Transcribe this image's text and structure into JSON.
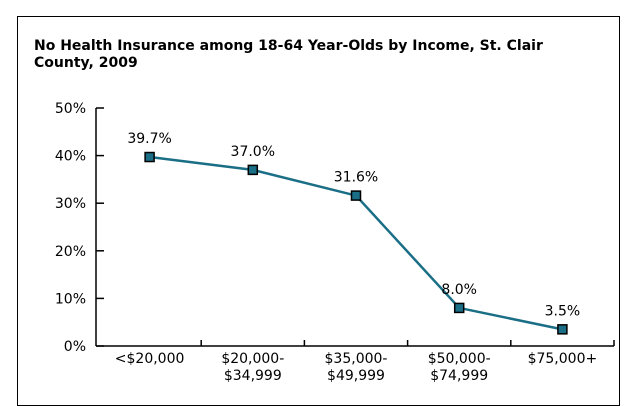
{
  "chart_data": {
    "type": "line",
    "title": "No Health Insurance among 18-64 Year-Olds by Income, St. Clair County, 2009",
    "xlabel": "",
    "ylabel": "",
    "categories": [
      [
        "<$20,000"
      ],
      [
        "$20,000-",
        "$34,999"
      ],
      [
        "$35,000-",
        "$49,999"
      ],
      [
        "$50,000-",
        "$74,999"
      ],
      [
        "$75,000+"
      ]
    ],
    "series": [
      {
        "values": [
          39.7,
          37.0,
          31.6,
          8.0,
          3.5
        ],
        "labels": [
          "39.7%",
          "37.0%",
          "31.6%",
          "8.0%",
          "3.5%"
        ],
        "color": "#1a6e86"
      }
    ],
    "ylim": [
      0,
      50
    ],
    "yticks": [
      0,
      10,
      20,
      30,
      40,
      50
    ],
    "ytick_labels": [
      "0%",
      "10%",
      "20%",
      "30%",
      "40%",
      "50%"
    ],
    "grid": false,
    "legend": "none"
  }
}
